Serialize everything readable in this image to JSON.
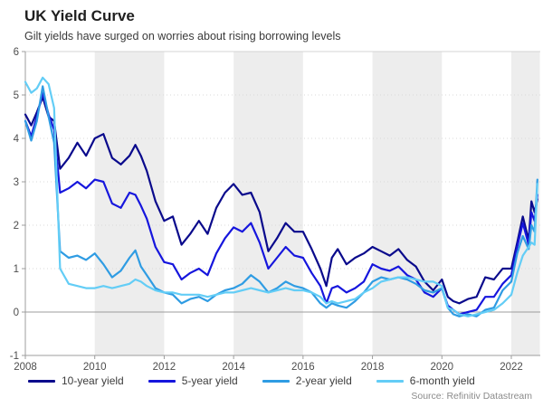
{
  "header": {
    "title": "UK Yield Curve",
    "subtitle": "Gilt yields have surged on worries about rising borrowing levels"
  },
  "source": "Source: Refinitiv Datastream",
  "chart_data": {
    "type": "line",
    "title": "UK Yield Curve",
    "xlabel": "",
    "ylabel": "",
    "xlim": [
      2008,
      2022.82
    ],
    "ylim": [
      -1,
      6
    ],
    "x_ticks": [
      2008,
      2010,
      2012,
      2014,
      2016,
      2018,
      2020,
      2022
    ],
    "y_ticks": [
      -1,
      0,
      1,
      2,
      3,
      4,
      5,
      6
    ],
    "grid": "dotted-horizontal",
    "legend_position": "bottom",
    "band_color": "#ededed",
    "axis_color": "#9c9c9c",
    "grid_color": "#d9d9d9",
    "background_bands": [
      [
        2010,
        2012
      ],
      [
        2014,
        2016
      ],
      [
        2018,
        2020
      ],
      [
        2022,
        2022.82
      ]
    ],
    "x": [
      2008.0,
      2008.17,
      2008.33,
      2008.5,
      2008.67,
      2008.83,
      2009.0,
      2009.25,
      2009.5,
      2009.75,
      2010.0,
      2010.25,
      2010.5,
      2010.75,
      2011.0,
      2011.17,
      2011.33,
      2011.5,
      2011.75,
      2012.0,
      2012.25,
      2012.5,
      2012.75,
      2013.0,
      2013.25,
      2013.5,
      2013.75,
      2014.0,
      2014.25,
      2014.5,
      2014.75,
      2015.0,
      2015.25,
      2015.5,
      2015.75,
      2016.0,
      2016.25,
      2016.5,
      2016.67,
      2016.83,
      2017.0,
      2017.25,
      2017.5,
      2017.75,
      2018.0,
      2018.25,
      2018.5,
      2018.75,
      2019.0,
      2019.25,
      2019.5,
      2019.75,
      2020.0,
      2020.17,
      2020.33,
      2020.5,
      2020.75,
      2021.0,
      2021.25,
      2021.5,
      2021.75,
      2022.0,
      2022.17,
      2022.33,
      2022.5,
      2022.58,
      2022.67,
      2022.75
    ],
    "series": [
      {
        "name": "10-year yield",
        "color": "#0a0a8c",
        "values": [
          4.55,
          4.3,
          4.6,
          4.95,
          4.5,
          4.4,
          3.3,
          3.55,
          3.9,
          3.6,
          4.0,
          4.1,
          3.55,
          3.4,
          3.6,
          3.85,
          3.6,
          3.25,
          2.55,
          2.1,
          2.2,
          1.55,
          1.8,
          2.1,
          1.8,
          2.4,
          2.75,
          2.95,
          2.7,
          2.75,
          2.3,
          1.4,
          1.7,
          2.05,
          1.85,
          1.85,
          1.45,
          1.0,
          0.6,
          1.25,
          1.45,
          1.1,
          1.25,
          1.35,
          1.5,
          1.4,
          1.3,
          1.45,
          1.2,
          1.05,
          0.7,
          0.5,
          0.75,
          0.35,
          0.25,
          0.2,
          0.3,
          0.35,
          0.8,
          0.75,
          1.0,
          1.0,
          1.6,
          2.2,
          1.65,
          2.55,
          2.3,
          2.6
        ]
      },
      {
        "name": "5-year yield",
        "color": "#1616dd",
        "values": [
          4.4,
          4.05,
          4.5,
          5.05,
          4.55,
          4.2,
          2.75,
          2.85,
          3.0,
          2.85,
          3.05,
          3.0,
          2.5,
          2.4,
          2.75,
          2.7,
          2.45,
          2.15,
          1.5,
          1.15,
          1.1,
          0.75,
          0.9,
          1.0,
          0.85,
          1.35,
          1.7,
          1.95,
          1.85,
          2.05,
          1.6,
          1.0,
          1.25,
          1.5,
          1.3,
          1.25,
          0.9,
          0.6,
          0.2,
          0.55,
          0.6,
          0.45,
          0.55,
          0.7,
          1.1,
          1.0,
          0.95,
          1.05,
          0.85,
          0.75,
          0.45,
          0.35,
          0.55,
          0.15,
          0.05,
          -0.05,
          0.0,
          0.05,
          0.35,
          0.35,
          0.65,
          0.85,
          1.5,
          2.05,
          1.55,
          2.3,
          2.1,
          2.7
        ]
      },
      {
        "name": "2-year yield",
        "color": "#2f9ce3",
        "values": [
          4.4,
          3.95,
          4.4,
          5.2,
          4.5,
          3.9,
          1.4,
          1.25,
          1.3,
          1.2,
          1.35,
          1.1,
          0.8,
          0.95,
          1.25,
          1.42,
          1.05,
          0.85,
          0.55,
          0.45,
          0.4,
          0.2,
          0.3,
          0.35,
          0.25,
          0.4,
          0.5,
          0.55,
          0.65,
          0.85,
          0.7,
          0.45,
          0.55,
          0.7,
          0.6,
          0.55,
          0.45,
          0.2,
          0.1,
          0.2,
          0.15,
          0.1,
          0.25,
          0.45,
          0.7,
          0.8,
          0.75,
          0.8,
          0.75,
          0.65,
          0.5,
          0.45,
          0.55,
          0.1,
          -0.05,
          -0.1,
          -0.05,
          -0.1,
          0.05,
          0.1,
          0.5,
          0.7,
          1.35,
          1.75,
          1.45,
          2.0,
          1.85,
          3.05
        ]
      },
      {
        "name": "6-month yield",
        "color": "#63cdf6",
        "values": [
          5.3,
          5.05,
          5.15,
          5.4,
          5.25,
          4.7,
          1.0,
          0.65,
          0.6,
          0.55,
          0.55,
          0.6,
          0.55,
          0.6,
          0.65,
          0.75,
          0.7,
          0.6,
          0.5,
          0.45,
          0.45,
          0.4,
          0.4,
          0.4,
          0.35,
          0.4,
          0.45,
          0.45,
          0.5,
          0.55,
          0.5,
          0.45,
          0.5,
          0.55,
          0.5,
          0.5,
          0.45,
          0.35,
          0.2,
          0.25,
          0.2,
          0.25,
          0.3,
          0.45,
          0.55,
          0.7,
          0.75,
          0.8,
          0.8,
          0.75,
          0.7,
          0.7,
          0.6,
          0.1,
          0.05,
          -0.05,
          -0.1,
          -0.05,
          0.0,
          0.05,
          0.2,
          0.4,
          0.9,
          1.3,
          1.5,
          1.6,
          1.55,
          2.95
        ]
      }
    ]
  }
}
